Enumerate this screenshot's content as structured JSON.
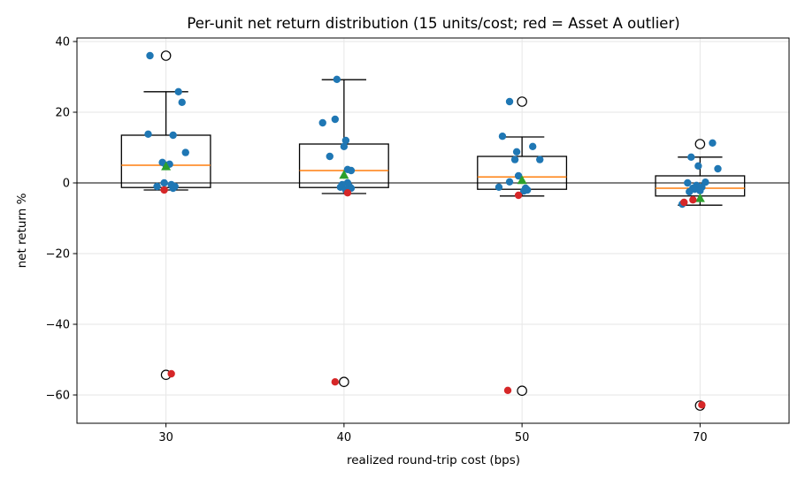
{
  "chart_data": {
    "type": "box",
    "title": "Per-unit net return distribution (15 units/cost; red = Asset A outlier)",
    "xlabel": "realized round-trip cost (bps)",
    "ylabel": "net return %",
    "categories": [
      "30",
      "40",
      "50",
      "70"
    ],
    "ylim": [
      -68,
      41
    ],
    "yticks": [
      40,
      20,
      0,
      -20,
      -40,
      -60
    ],
    "ytick_labels": [
      "40",
      "20",
      "0",
      "−20",
      "−40",
      "−60"
    ],
    "grid": true,
    "zero_line": true,
    "colors": {
      "points": "#1f77b4",
      "outlier_asset": "#d62728",
      "median": "#ff7f0e",
      "mean": "#2ca02c",
      "box": "#000000",
      "grid": "#e6e6e6"
    },
    "boxes": [
      {
        "category": "30",
        "q1": -1.3,
        "median": 5.0,
        "q3": 13.5,
        "whisker_low": -2.0,
        "whisker_high": 25.8,
        "mean": 4.7,
        "fliers": [
          36.0,
          -54.3
        ]
      },
      {
        "category": "40",
        "q1": -1.3,
        "median": 3.5,
        "q3": 11.0,
        "whisker_low": -3.0,
        "whisker_high": 29.2,
        "mean": 2.3,
        "fliers": [
          -56.3
        ]
      },
      {
        "category": "50",
        "q1": -1.8,
        "median": 1.7,
        "q3": 7.5,
        "whisker_low": -3.7,
        "whisker_high": 13.0,
        "mean": 0.8,
        "fliers": [
          23.0,
          -58.8
        ]
      },
      {
        "category": "70",
        "q1": -3.7,
        "median": -1.5,
        "q3": 2.0,
        "whisker_low": -6.3,
        "whisker_high": 7.3,
        "mean": -4.3,
        "fliers": [
          11.0,
          -63.0
        ]
      }
    ],
    "points": [
      {
        "category": "30",
        "values": [
          36.0,
          13.8,
          5.8,
          5.3,
          25.8,
          22.8,
          13.5,
          8.6,
          5.0,
          0.0,
          -0.5,
          -1.0,
          -1.0,
          -1.5
        ],
        "offsets": [
          -0.09,
          -0.1,
          -0.02,
          0.02,
          0.07,
          0.09,
          0.04,
          0.11,
          0.0,
          -0.01,
          0.03,
          -0.05,
          0.05,
          0.04
        ]
      },
      {
        "category": "40",
        "values": [
          29.3,
          17.0,
          18.0,
          7.5,
          10.3,
          12.0,
          3.8,
          3.5,
          0.0,
          -0.5,
          -1.0,
          -1.2,
          -1.5,
          -2.0
        ],
        "offsets": [
          -0.04,
          -0.12,
          -0.05,
          -0.08,
          0.0,
          0.01,
          0.02,
          0.04,
          0.02,
          -0.01,
          0.03,
          -0.02,
          0.04,
          0.01
        ]
      },
      {
        "category": "50",
        "values": [
          23.0,
          13.2,
          10.3,
          8.8,
          6.6,
          6.6,
          2.0,
          0.3,
          -1.2,
          -1.5,
          -2.0,
          -2.3
        ],
        "offsets": [
          -0.07,
          -0.11,
          0.06,
          -0.03,
          0.1,
          -0.04,
          -0.02,
          -0.07,
          -0.13,
          0.02,
          0.03,
          0.01
        ]
      },
      {
        "category": "70",
        "values": [
          11.3,
          7.3,
          4.8,
          4.0,
          0.2,
          0.0,
          -0.7,
          -1.2,
          -1.5,
          -1.8,
          -2.2,
          -2.5,
          -6.0
        ],
        "offsets": [
          0.07,
          -0.05,
          -0.01,
          0.1,
          0.03,
          -0.07,
          -0.02,
          0.01,
          -0.04,
          -0.03,
          0.0,
          -0.06,
          -0.1
        ]
      }
    ],
    "asset_a_points": [
      {
        "category": "30",
        "values": [
          -2.0,
          -54.0
        ],
        "offsets": [
          -0.01,
          0.03
        ]
      },
      {
        "category": "40",
        "values": [
          -2.8,
          -56.3
        ],
        "offsets": [
          0.02,
          -0.05
        ]
      },
      {
        "category": "50",
        "values": [
          -3.5,
          -58.7
        ],
        "offsets": [
          -0.02,
          -0.08
        ]
      },
      {
        "category": "70",
        "values": [
          -4.8,
          -5.5,
          -62.8
        ],
        "offsets": [
          -0.04,
          -0.09,
          0.01
        ]
      }
    ]
  }
}
